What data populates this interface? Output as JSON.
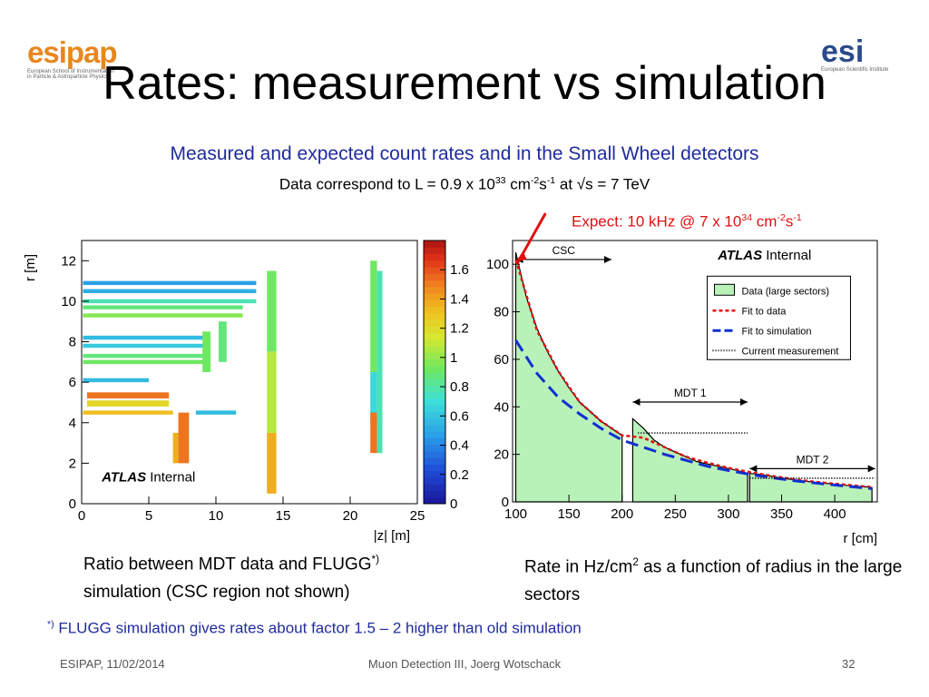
{
  "logos": {
    "left": "esipap",
    "left_sub1": "European School of Instrumentation",
    "left_sub2": "in Particle & Astroparticle Physics",
    "right": "esi",
    "right_sub": "European Scientific Institute"
  },
  "header": {
    "title": "Rates: measurement vs simulation",
    "subtitle": "Measured and expected count rates and in the Small Wheel detectors",
    "data_prefix": "Data correspond to L = 0.9 x 10",
    "data_exp1": "33",
    "data_unit1": " cm",
    "data_exp2": "-2",
    "data_unit2": "s",
    "data_exp3": "-1",
    "data_suffix": " at √s = 7 TeV"
  },
  "annotation": {
    "prefix": "Expect: 10 kHz @ 7 x 10",
    "exp1": "34",
    "unit1": " cm",
    "exp2": "-2",
    "unit2": "s",
    "exp3": "-1",
    "color": "#e01010"
  },
  "captions": {
    "left_line1": "Ratio between MDT data and FLUGG",
    "left_sup": "*)",
    "left_line2": "simulation (CSC region not shown)",
    "right_a": "Rate in Hz/cm",
    "right_sup": "2",
    "right_b": " as a function of radius in the large sectors"
  },
  "footnote": {
    "mark": "*)",
    "text": " FLUGG simulation gives rates about factor 1.5 – 2 higher than old simulation"
  },
  "footer": {
    "left": "ESIPAP, 11/02/2014",
    "center": "Muon Detection III, Joerg Wotschack",
    "right": "32"
  },
  "chart_data": [
    {
      "type": "heatmap",
      "label": "ATLAS Internal",
      "label_bold": "ATLAS",
      "label_rest": "Internal",
      "xlabel": "|z| [m]",
      "ylabel": "r [m]",
      "xlim": [
        0,
        25
      ],
      "ylim": [
        0,
        13
      ],
      "xticks": [
        0,
        5,
        10,
        15,
        20,
        25
      ],
      "yticks": [
        0,
        2,
        4,
        6,
        8,
        10,
        12
      ],
      "colorbar": {
        "min": 0,
        "max": 1.8,
        "ticks": [
          0,
          0.2,
          0.4,
          0.6,
          0.8,
          1,
          1.2,
          1.4,
          1.6
        ]
      },
      "cells": [
        {
          "z": [
            0.1,
            13.0
          ],
          "r": [
            10.8,
            11.0
          ],
          "v": 0.45
        },
        {
          "z": [
            0.1,
            13.0
          ],
          "r": [
            10.4,
            10.6
          ],
          "v": 0.5
        },
        {
          "z": [
            0.1,
            13.0
          ],
          "r": [
            9.9,
            10.1
          ],
          "v": 0.75
        },
        {
          "z": [
            0.1,
            12.0
          ],
          "r": [
            9.6,
            9.8
          ],
          "v": 0.85
        },
        {
          "z": [
            0.1,
            12.0
          ],
          "r": [
            9.2,
            9.4
          ],
          "v": 0.95
        },
        {
          "z": [
            0.1,
            9.5
          ],
          "r": [
            8.1,
            8.3
          ],
          "v": 0.55
        },
        {
          "z": [
            0.1,
            9.5
          ],
          "r": [
            7.7,
            7.9
          ],
          "v": 0.6
        },
        {
          "z": [
            0.1,
            9.5
          ],
          "r": [
            7.2,
            7.4
          ],
          "v": 0.85
        },
        {
          "z": [
            0.1,
            9.5
          ],
          "r": [
            6.9,
            7.1
          ],
          "v": 0.9
        },
        {
          "z": [
            0.1,
            5.0
          ],
          "r": [
            6.0,
            6.2
          ],
          "v": 0.55
        },
        {
          "z": [
            0.4,
            6.5
          ],
          "r": [
            5.2,
            5.5
          ],
          "v": 1.5
        },
        {
          "z": [
            0.4,
            6.5
          ],
          "r": [
            4.8,
            5.1
          ],
          "v": 1.2
        },
        {
          "z": [
            0.1,
            6.8
          ],
          "r": [
            4.4,
            4.6
          ],
          "v": 1.3
        },
        {
          "z": [
            8.5,
            11.5
          ],
          "r": [
            4.4,
            4.6
          ],
          "v": 0.55
        },
        {
          "z": [
            7.2,
            8.0
          ],
          "r": [
            2.0,
            4.5
          ],
          "v": 1.5
        },
        {
          "z": [
            6.8,
            7.2
          ],
          "r": [
            2.0,
            3.5
          ],
          "v": 1.35
        },
        {
          "z": [
            9.0,
            9.6
          ],
          "r": [
            6.5,
            8.5
          ],
          "v": 0.9
        },
        {
          "z": [
            10.2,
            10.8
          ],
          "r": [
            7.0,
            9.0
          ],
          "v": 0.85
        },
        {
          "z": [
            13.8,
            14.5
          ],
          "r": [
            7.5,
            11.5
          ],
          "v": 0.9
        },
        {
          "z": [
            13.8,
            14.5
          ],
          "r": [
            3.5,
            7.5
          ],
          "v": 1.05
        },
        {
          "z": [
            13.8,
            14.5
          ],
          "r": [
            0.5,
            3.5
          ],
          "v": 1.35
        },
        {
          "z": [
            21.5,
            22.0
          ],
          "r": [
            6.5,
            12.0
          ],
          "v": 0.9
        },
        {
          "z": [
            21.5,
            22.0
          ],
          "r": [
            4.0,
            6.5
          ],
          "v": 0.65
        },
        {
          "z": [
            21.5,
            22.0
          ],
          "r": [
            2.5,
            4.5
          ],
          "v": 1.5
        },
        {
          "z": [
            22.0,
            22.4
          ],
          "r": [
            2.5,
            11.5
          ],
          "v": 0.75
        }
      ]
    },
    {
      "type": "area",
      "label": "ATLAS Internal",
      "label_bold": "ATLAS",
      "label_rest": "Internal",
      "xlabel": "r [cm]",
      "ylabel": "",
      "xlim": [
        97,
        440
      ],
      "ylim": [
        0,
        110
      ],
      "xticks": [
        100,
        150,
        200,
        250,
        300,
        350,
        400
      ],
      "yticks": [
        0,
        20,
        40,
        60,
        80,
        100
      ],
      "regions": [
        {
          "name": "CSC",
          "from": 100,
          "to": 190
        },
        {
          "name": "MDT 1",
          "from": 210,
          "to": 318
        },
        {
          "name": "MDT 2",
          "from": 320,
          "to": 438
        }
      ],
      "series": [
        {
          "name": "Data (large sectors)",
          "color": "#b9f2b9",
          "x": [
            100,
            110,
            120,
            130,
            140,
            150,
            160,
            170,
            180,
            190,
            200,
            210,
            220,
            230,
            240,
            250,
            260,
            270,
            280,
            290,
            300,
            310,
            320,
            330,
            340,
            350,
            360,
            370,
            380,
            390,
            400,
            410,
            420,
            430,
            435
          ],
          "y": [
            105,
            86,
            73,
            63,
            55,
            48,
            42,
            38,
            34,
            31,
            28,
            35,
            31,
            26,
            23,
            21,
            19,
            17,
            16,
            15,
            14,
            13,
            12,
            11.5,
            10.8,
            10.0,
            9.4,
            8.8,
            8.3,
            7.9,
            7.4,
            7.0,
            6.6,
            6.3,
            6.0
          ]
        },
        {
          "name": "Fit to data",
          "color": "#e01010",
          "x": [
            100,
            120,
            140,
            160,
            180,
            200,
            220,
            240,
            260,
            280,
            300,
            320,
            340,
            360,
            380,
            400,
            420,
            435
          ],
          "y": [
            102,
            72,
            55,
            42,
            34,
            28,
            27,
            23,
            19,
            16.5,
            14.3,
            12.5,
            11,
            9.6,
            8.5,
            7.6,
            6.8,
            6.2
          ]
        },
        {
          "name": "Fit to simulation",
          "color": "#1030d0",
          "x": [
            100,
            120,
            140,
            160,
            180,
            200,
            220,
            240,
            260,
            280,
            300,
            320,
            340,
            360,
            380,
            400,
            420,
            435
          ],
          "y": [
            68,
            54,
            44,
            37,
            31,
            26,
            23,
            20,
            17.5,
            15,
            13.2,
            11.6,
            10.2,
            9.0,
            8.0,
            7.1,
            6.2,
            5.6
          ]
        },
        {
          "name": "Current measurement",
          "color": "#000000",
          "x": [
            215,
            318,
            320,
            438
          ],
          "y": [
            29,
            29,
            10,
            10
          ]
        }
      ]
    }
  ]
}
